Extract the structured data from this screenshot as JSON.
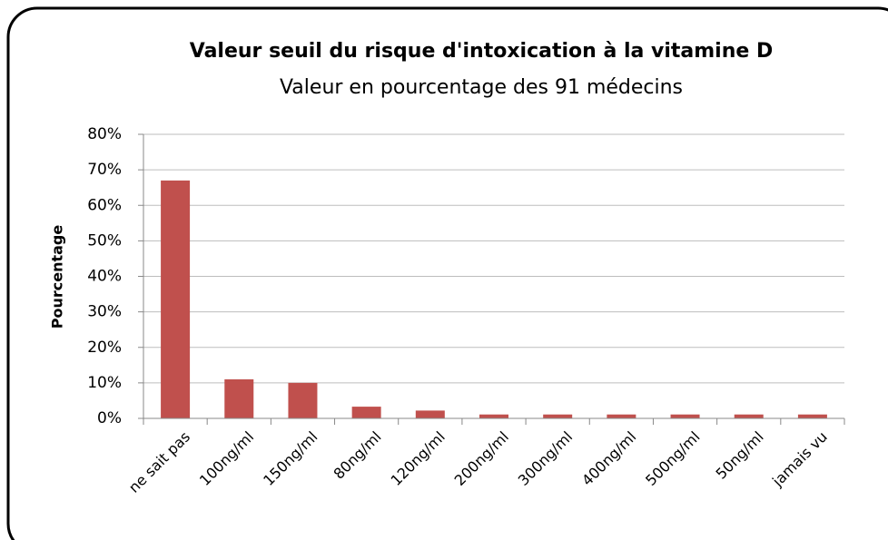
{
  "chart_data": {
    "type": "bar",
    "title": "Valeur seuil du risque d'intoxication à la vitamine D",
    "subtitle": "Valeur en pourcentage des 91 médecins",
    "y_label": "Pourcentage",
    "categories": [
      "ne sait pas",
      "100ng/ml",
      "150ng/ml",
      "80ng/ml",
      "120ng/ml",
      "200ng/ml",
      "300ng/ml",
      "400ng/ml",
      "500ng/ml",
      "50ng/ml",
      "jamais vu"
    ],
    "values": [
      67,
      11,
      10,
      3.3,
      2.2,
      1.1,
      1.1,
      1.1,
      1.1,
      1.1,
      1.1
    ],
    "color": "#c0504d",
    "ylim": [
      0,
      80
    ],
    "yticks": [
      {
        "value": 0,
        "label": "0%"
      },
      {
        "value": 10,
        "label": "10%"
      },
      {
        "value": 20,
        "label": "20%"
      },
      {
        "value": 30,
        "label": "30%"
      },
      {
        "value": 40,
        "label": "40%"
      },
      {
        "value": 50,
        "label": "50%"
      },
      {
        "value": 60,
        "label": "60%"
      },
      {
        "value": 70,
        "label": "70%"
      },
      {
        "value": 80,
        "label": "80%"
      }
    ],
    "grid": true
  }
}
